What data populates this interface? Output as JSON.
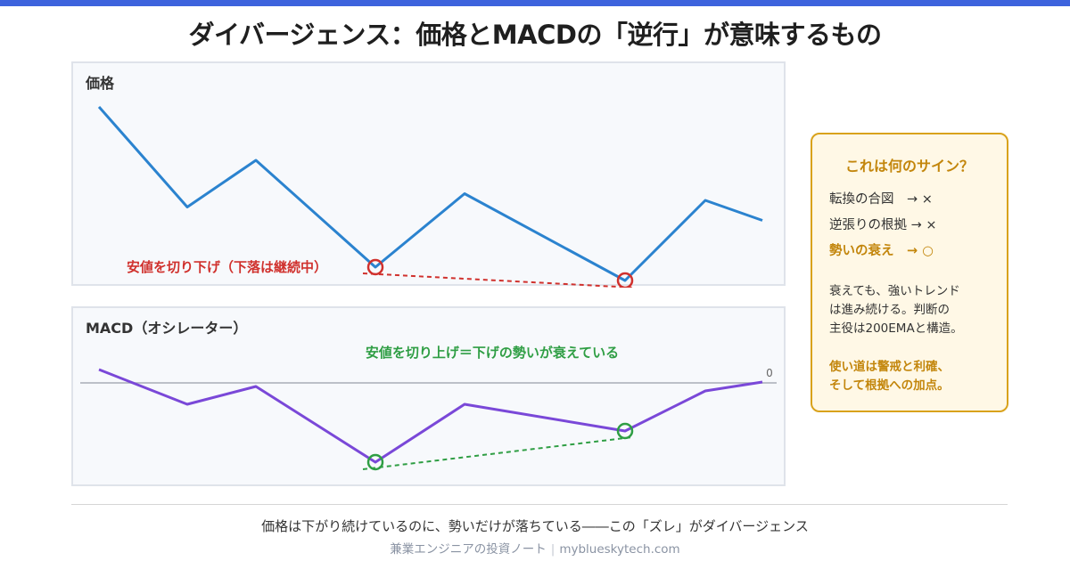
{
  "title": "ダイバージェンス：価格とMACDの「逆行」が意味するもの",
  "colors": {
    "accent": "#3d63dd",
    "price_line": "#2b83cf",
    "macd_line": "#7a48d8",
    "bearish": "#d0312d",
    "bullish": "#2f9e44",
    "gold": "#c3860c"
  },
  "price_panel": {
    "label": "価格",
    "annotation": "安値を切り下げ（下落は継続中）",
    "series": [
      100,
      70,
      84,
      52,
      74,
      48,
      72,
      66
    ],
    "lows": [
      {
        "index": 3,
        "value": 52
      },
      {
        "index": 5,
        "value": 48
      }
    ]
  },
  "macd_panel": {
    "label": "MACD（オシレーター）",
    "annotation": "安値を切り上げ＝下げの勢いが衰えている",
    "zero_label": "0",
    "series": [
      15,
      -24,
      -4,
      -89,
      -24,
      -54,
      -9,
      1
    ],
    "lows": [
      {
        "index": 3,
        "value": -89
      },
      {
        "index": 5,
        "value": -54
      }
    ]
  },
  "sign_box": {
    "title": "これは何のサイン？",
    "rows": [
      {
        "label": "転換の合図　→ ×",
        "ok": false
      },
      {
        "label": "逆張りの根拠 → ×",
        "ok": false
      },
      {
        "label": "勢いの衰え　→ ○",
        "ok": true
      }
    ],
    "desc_lines": [
      "衰えても、強いトレンド",
      "は進み続ける。判断の",
      "主役は200EMAと構造。"
    ],
    "use_lines": [
      "使い道は警戒と利確、",
      "そして根拠への加点。"
    ]
  },
  "footer": {
    "main": "価格は下がり続けているのに、勢いだけが落ちている――この「ズレ」がダイバージェンス",
    "site_name": "兼業エンジニアの投資ノート",
    "separator": "|",
    "url": "myblueskytech.com"
  }
}
